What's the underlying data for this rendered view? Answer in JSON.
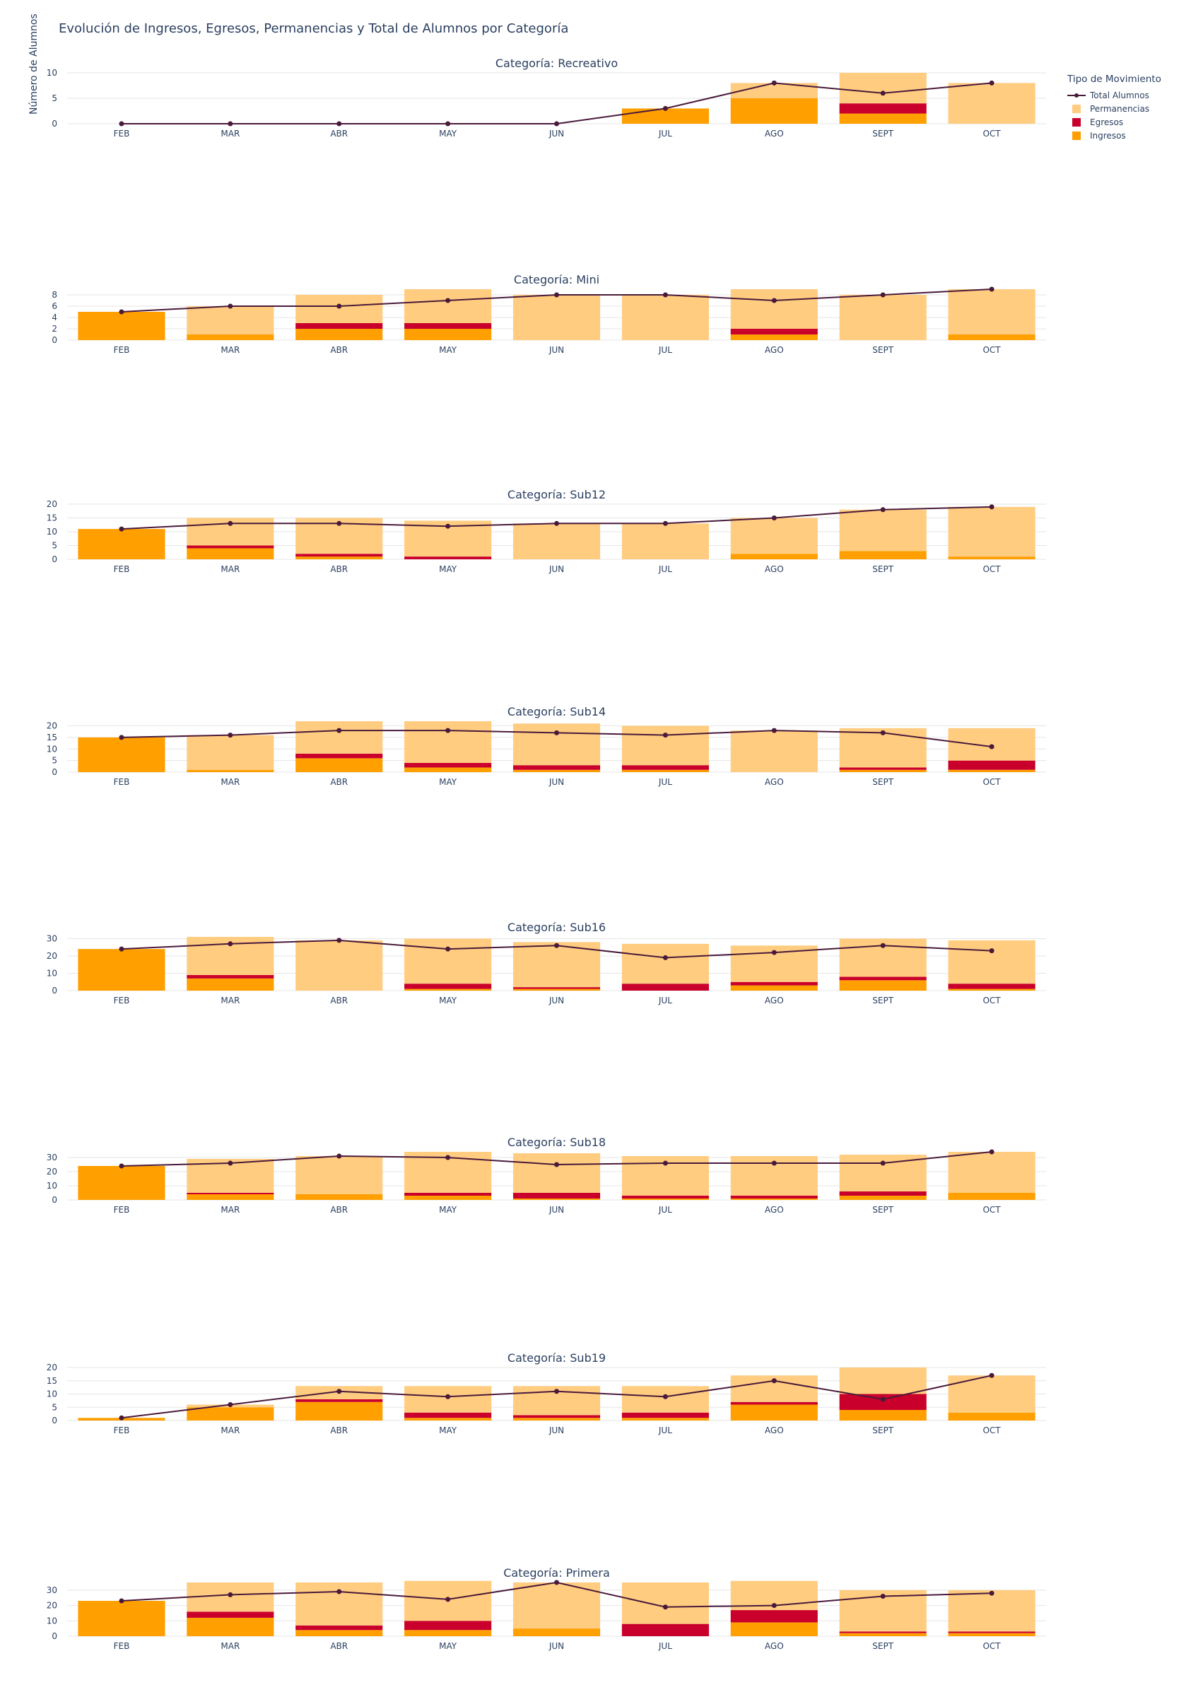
{
  "title": "Evolución de Ingresos, Egresos, Permanencias y Total de Alumnos por Categoría",
  "y_axis_title": "Número de Alumnos",
  "legend": {
    "title": "Tipo de Movimiento",
    "items": [
      {
        "name": "Total Alumnos",
        "kind": "line",
        "color": "#4a1a3a"
      },
      {
        "name": "Permanencias",
        "kind": "bar",
        "color": "#ffcc80"
      },
      {
        "name": "Egresos",
        "kind": "bar",
        "color": "#c9002b"
      },
      {
        "name": "Ingresos",
        "kind": "bar",
        "color": "#ff9f00"
      }
    ]
  },
  "colors": {
    "ingresos": "#ff9f00",
    "egresos": "#c9002b",
    "permanencias": "#ffcc80",
    "total_line": "#4a1a3a",
    "grid": "#e5e5e5",
    "text": "#2a3f5f"
  },
  "chart_data": [
    {
      "type": "bar",
      "title": "Categoría: Recreativo",
      "categories": [
        "FEB",
        "MAR",
        "ABR",
        "MAY",
        "JUN",
        "JUL",
        "AGO",
        "SEPT",
        "OCT"
      ],
      "yticks": [
        0,
        5,
        10
      ],
      "ylim": [
        0,
        10
      ],
      "series": [
        {
          "name": "Ingresos",
          "values": [
            0,
            0,
            0,
            0,
            0,
            3,
            5,
            2,
            0
          ]
        },
        {
          "name": "Egresos",
          "values": [
            0,
            0,
            0,
            0,
            0,
            0,
            0,
            2,
            0
          ]
        },
        {
          "name": "Permanencias",
          "values": [
            0,
            0,
            0,
            0,
            0,
            0,
            3,
            6,
            8
          ]
        },
        {
          "name": "Total Alumnos",
          "values": [
            0,
            0,
            0,
            0,
            0,
            3,
            8,
            6,
            8
          ]
        }
      ]
    },
    {
      "type": "bar",
      "title": "Categoría: Mini",
      "categories": [
        "FEB",
        "MAR",
        "ABR",
        "MAY",
        "JUN",
        "JUL",
        "AGO",
        "SEPT",
        "OCT"
      ],
      "yticks": [
        0,
        2,
        4,
        6,
        8
      ],
      "ylim": [
        0,
        9
      ],
      "series": [
        {
          "name": "Ingresos",
          "values": [
            5,
            1,
            2,
            2,
            0,
            0,
            1,
            0,
            1
          ]
        },
        {
          "name": "Egresos",
          "values": [
            0,
            0,
            1,
            1,
            0,
            0,
            1,
            0,
            0
          ]
        },
        {
          "name": "Permanencias",
          "values": [
            0,
            5,
            5,
            6,
            8,
            8,
            7,
            8,
            8
          ]
        },
        {
          "name": "Total Alumnos",
          "values": [
            5,
            6,
            6,
            7,
            8,
            8,
            7,
            8,
            9
          ]
        }
      ]
    },
    {
      "type": "bar",
      "title": "Categoría: Sub12",
      "categories": [
        "FEB",
        "MAR",
        "ABR",
        "MAY",
        "JUN",
        "JUL",
        "AGO",
        "SEPT",
        "OCT"
      ],
      "yticks": [
        0,
        5,
        10,
        15,
        20
      ],
      "ylim": [
        0,
        20
      ],
      "series": [
        {
          "name": "Ingresos",
          "values": [
            11,
            4,
            1,
            0,
            0,
            0,
            2,
            3,
            1
          ]
        },
        {
          "name": "Egresos",
          "values": [
            0,
            1,
            1,
            1,
            0,
            0,
            0,
            0,
            0
          ]
        },
        {
          "name": "Permanencias",
          "values": [
            0,
            10,
            13,
            13,
            13,
            13,
            13,
            15,
            18
          ]
        },
        {
          "name": "Total Alumnos",
          "values": [
            11,
            13,
            13,
            12,
            13,
            13,
            15,
            18,
            19
          ]
        }
      ]
    },
    {
      "type": "bar",
      "title": "Categoría: Sub14",
      "categories": [
        "FEB",
        "MAR",
        "ABR",
        "MAY",
        "JUN",
        "JUL",
        "AGO",
        "SEPT",
        "OCT"
      ],
      "yticks": [
        0,
        5,
        10,
        15,
        20
      ],
      "ylim": [
        0,
        22
      ],
      "series": [
        {
          "name": "Ingresos",
          "values": [
            15,
            1,
            6,
            2,
            1,
            1,
            0,
            1,
            1
          ]
        },
        {
          "name": "Egresos",
          "values": [
            0,
            0,
            2,
            2,
            2,
            2,
            0,
            1,
            4
          ]
        },
        {
          "name": "Permanencias",
          "values": [
            0,
            15,
            14,
            18,
            18,
            17,
            18,
            17,
            14
          ]
        },
        {
          "name": "Total Alumnos",
          "values": [
            15,
            16,
            18,
            18,
            17,
            16,
            18,
            17,
            11
          ]
        }
      ]
    },
    {
      "type": "bar",
      "title": "Categoría: Sub16",
      "categories": [
        "FEB",
        "MAR",
        "ABR",
        "MAY",
        "JUN",
        "JUL",
        "AGO",
        "SEPT",
        "OCT"
      ],
      "yticks": [
        0,
        10,
        20,
        30
      ],
      "ylim": [
        0,
        31
      ],
      "series": [
        {
          "name": "Ingresos",
          "values": [
            24,
            7,
            0,
            1,
            1,
            0,
            3,
            6,
            1
          ]
        },
        {
          "name": "Egresos",
          "values": [
            0,
            2,
            0,
            3,
            1,
            4,
            2,
            2,
            3
          ]
        },
        {
          "name": "Permanencias",
          "values": [
            0,
            22,
            29,
            26,
            26,
            23,
            21,
            22,
            25
          ]
        },
        {
          "name": "Total Alumnos",
          "values": [
            24,
            27,
            29,
            24,
            26,
            19,
            22,
            26,
            23
          ]
        }
      ]
    },
    {
      "type": "bar",
      "title": "Categoría: Sub18",
      "categories": [
        "FEB",
        "MAR",
        "ABR",
        "MAY",
        "JUN",
        "JUL",
        "AGO",
        "SEPT",
        "OCT"
      ],
      "yticks": [
        0,
        10,
        20,
        30
      ],
      "ylim": [
        0,
        34
      ],
      "series": [
        {
          "name": "Ingresos",
          "values": [
            24,
            4,
            4,
            3,
            1,
            1,
            1,
            3,
            5
          ]
        },
        {
          "name": "Egresos",
          "values": [
            0,
            1,
            0,
            2,
            4,
            2,
            2,
            3,
            0
          ]
        },
        {
          "name": "Permanencias",
          "values": [
            0,
            24,
            27,
            29,
            28,
            28,
            28,
            26,
            29
          ]
        },
        {
          "name": "Total Alumnos",
          "values": [
            24,
            26,
            31,
            30,
            25,
            26,
            26,
            26,
            34
          ]
        }
      ]
    },
    {
      "type": "bar",
      "title": "Categoría: Sub19",
      "categories": [
        "FEB",
        "MAR",
        "ABR",
        "MAY",
        "JUN",
        "JUL",
        "AGO",
        "SEPT",
        "OCT"
      ],
      "yticks": [
        0,
        5,
        10,
        15,
        20
      ],
      "ylim": [
        0,
        20
      ],
      "series": [
        {
          "name": "Ingresos",
          "values": [
            1,
            5,
            7,
            1,
            1,
            1,
            6,
            4,
            3
          ]
        },
        {
          "name": "Egresos",
          "values": [
            0,
            0,
            1,
            2,
            1,
            2,
            1,
            6,
            0
          ]
        },
        {
          "name": "Permanencias",
          "values": [
            0,
            1,
            5,
            10,
            11,
            10,
            10,
            10,
            14
          ]
        },
        {
          "name": "Total Alumnos",
          "values": [
            1,
            6,
            11,
            9,
            11,
            9,
            15,
            8,
            17
          ]
        }
      ]
    },
    {
      "type": "bar",
      "title": "Categoría: Primera",
      "categories": [
        "FEB",
        "MAR",
        "ABR",
        "MAY",
        "JUN",
        "JUL",
        "AGO",
        "SEPT",
        "OCT"
      ],
      "yticks": [
        0,
        10,
        20,
        30
      ],
      "ylim": [
        0,
        35
      ],
      "series": [
        {
          "name": "Ingresos",
          "values": [
            23,
            12,
            4,
            4,
            5,
            0,
            9,
            2,
            2
          ]
        },
        {
          "name": "Egresos",
          "values": [
            0,
            4,
            3,
            6,
            0,
            8,
            8,
            1,
            1
          ]
        },
        {
          "name": "Permanencias",
          "values": [
            0,
            19,
            28,
            26,
            30,
            27,
            19,
            27,
            27
          ]
        },
        {
          "name": "Total Alumnos",
          "values": [
            23,
            27,
            29,
            24,
            35,
            19,
            20,
            26,
            28
          ]
        }
      ]
    }
  ]
}
